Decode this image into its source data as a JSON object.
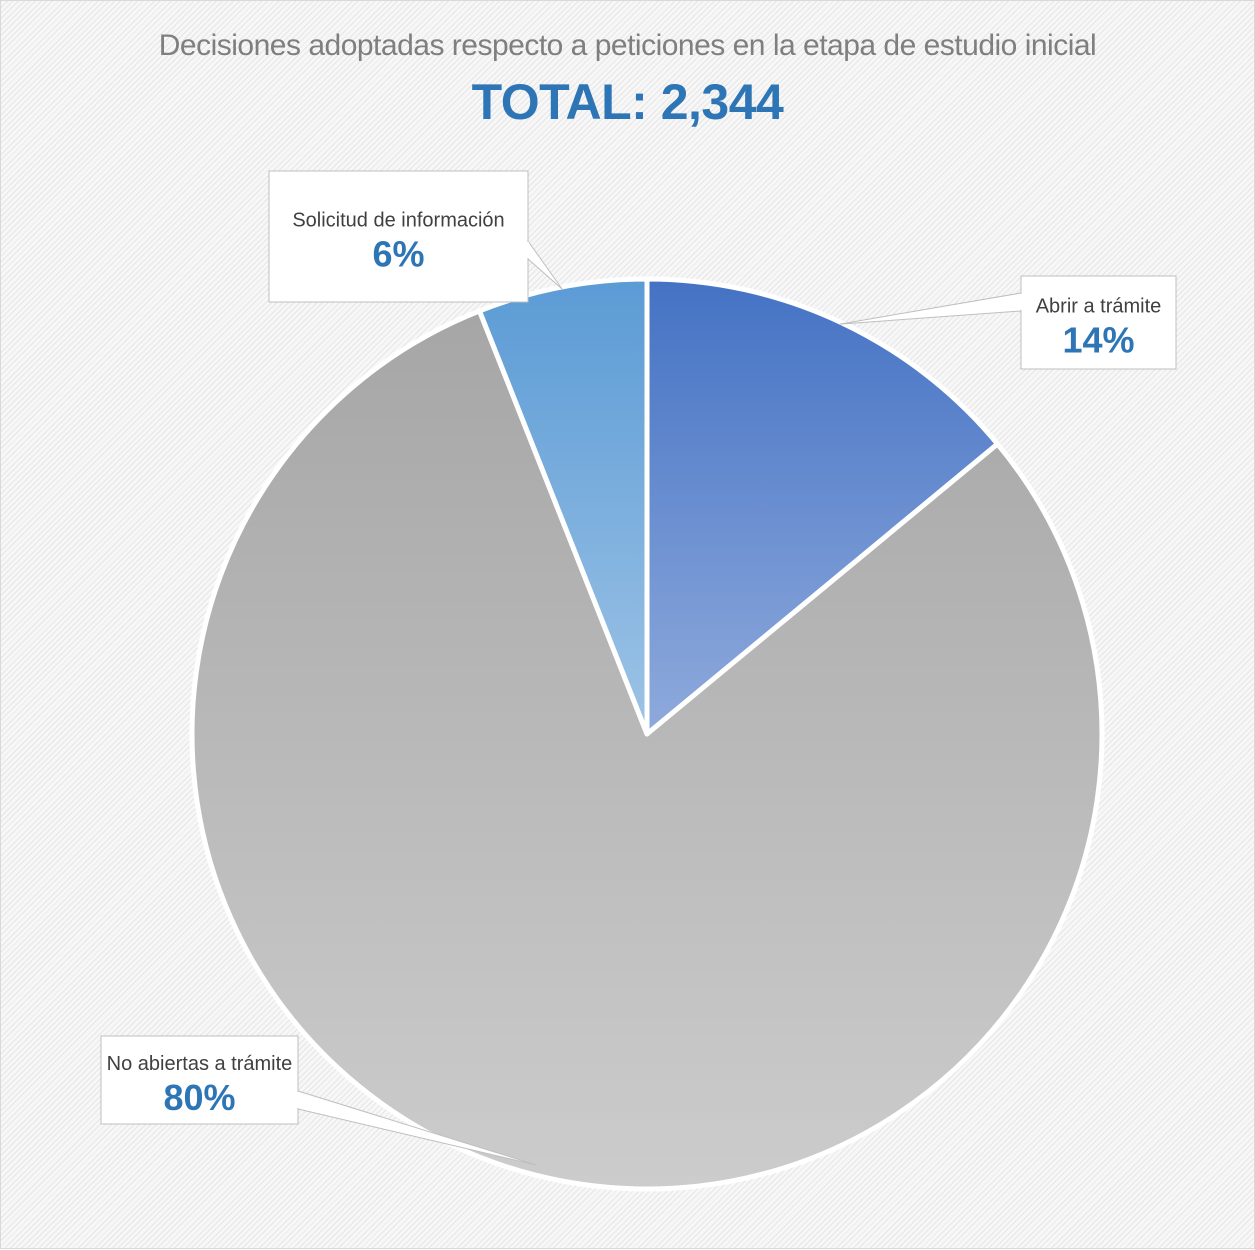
{
  "chart_data": {
    "type": "pie",
    "title": "Decisiones adoptadas respecto a peticiones en la etapa de estudio inicial",
    "subtitle": "TOTAL: 2,344",
    "categories": [
      "Abrir a trámite",
      "No abiertas a trámite",
      "Solicitud de información"
    ],
    "values": [
      14,
      80,
      6
    ],
    "data_labels": [
      "14%",
      "80%",
      "6%"
    ],
    "colors": {
      "abrir": [
        "#4472c4",
        "#8faadc"
      ],
      "no_abiertas": [
        "#a6a6a6",
        "#cccccc"
      ],
      "solicitud": [
        "#5b9bd5",
        "#9dc3e6"
      ],
      "title": "#7f7f7f",
      "value_labels": "#2e75b6"
    },
    "legend": "none"
  }
}
